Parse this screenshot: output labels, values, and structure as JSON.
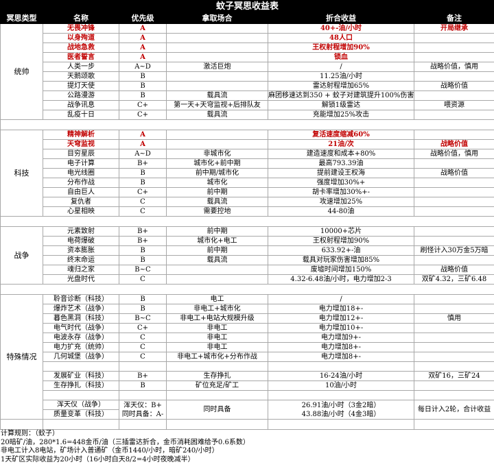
{
  "title": "蚊子冥思收益表",
  "headers": [
    "冥思类型",
    "名称",
    "优先级",
    "拿取场合",
    "折合收益",
    "备注"
  ],
  "accent_red": "#c00000",
  "sections": [
    {
      "type": "统帅",
      "rows": [
        {
          "name": "无畏冲锋",
          "priority": "A",
          "scene": "",
          "income": "40+-油/小时",
          "note": "开局继承",
          "red": true
        },
        {
          "name": "以身殉道",
          "priority": "A",
          "scene": "",
          "income": "48人口",
          "note": "",
          "red": true
        },
        {
          "name": "战地急救",
          "priority": "A",
          "scene": "",
          "income": "王权射程增加90%",
          "note": "",
          "red": true
        },
        {
          "name": "医者誓言",
          "priority": "A",
          "scene": "",
          "income": "锁血",
          "note": "",
          "red": true
        },
        {
          "name": "人类一步",
          "priority": "A~D",
          "scene": "激活巨炮",
          "income": "/",
          "note": "战略价值，慎用",
          "red": false
        },
        {
          "name": "天鹅颂歌",
          "priority": "B",
          "scene": "",
          "income": "11.25油/小时",
          "note": "",
          "red": false
        },
        {
          "name": "提灯天使",
          "priority": "B",
          "scene": "",
          "income": "雷达射程增加65%",
          "note": "战略价值",
          "red": false
        },
        {
          "name": "公路漫游",
          "priority": "B",
          "scene": "载具流",
          "income": "麻团移速达到350 + 蚊子对建筑提升100%伤害",
          "note": "",
          "red": false
        },
        {
          "name": "战争讯息",
          "priority": "C+",
          "scene": "第一天+天穹监视+后排队友",
          "income": "解锁1级雷达",
          "note": "喂资源",
          "red": false
        },
        {
          "name": "乱疫十日",
          "priority": "C+",
          "scene": "载具流",
          "income": "充能增加25%攻击",
          "note": "",
          "red": false
        }
      ]
    },
    {
      "type": "科技",
      "rows": [
        {
          "name": "精神解析",
          "priority": "A",
          "scene": "",
          "income": "复活速度缩减60%",
          "note": "",
          "red": true
        },
        {
          "name": "天穹监视",
          "priority": "A",
          "scene": "",
          "income": "21油/次",
          "note": "战略价值",
          "red": true
        },
        {
          "name": "目穷星辰",
          "priority": "A~D",
          "scene": "非城市化",
          "income": "建造速度和成本+80%",
          "note": "战略价值，慎用",
          "red": false
        },
        {
          "name": "电子计算",
          "priority": "B+",
          "scene": "城市化+前中期",
          "income": "最高793.39油",
          "note": "",
          "red": false
        },
        {
          "name": "电光线圈",
          "priority": "B",
          "scene": "前中期/城市化",
          "income": "提前建设王权海",
          "note": "战略价值",
          "red": false
        },
        {
          "name": "分布作战",
          "priority": "B",
          "scene": "城市化",
          "income": "强度增加30%+",
          "note": "",
          "red": false
        },
        {
          "name": "自由巨人",
          "priority": "C+",
          "scene": "前中期",
          "income": "胡卡率增加30%+-",
          "note": "",
          "red": false
        },
        {
          "name": "复仇者",
          "priority": "C",
          "scene": "载具流",
          "income": "攻速增加25%",
          "note": "",
          "red": false
        },
        {
          "name": "心星相映",
          "priority": "C",
          "scene": "需要控地",
          "income": "44-80油",
          "note": "",
          "red": false
        }
      ]
    },
    {
      "type": "战争",
      "rows": [
        {
          "name": "元素致射",
          "priority": "B+",
          "scene": "前中期",
          "income": "10000+芯片",
          "note": "",
          "red": false
        },
        {
          "name": "电荷爆破",
          "priority": "B+",
          "scene": "城市化+电工",
          "income": "王权射程增加90%",
          "note": "",
          "red": false
        },
        {
          "name": "资本膨胀",
          "priority": "B",
          "scene": "前中期",
          "income": "633.92+-油",
          "note": "刷怪计入30万金5万暗",
          "red": false
        },
        {
          "name": "终末命运",
          "priority": "B",
          "scene": "载具流",
          "income": "载具对玩家伤害增加85%",
          "note": "",
          "red": false
        },
        {
          "name": "魂归之家",
          "priority": "B~C",
          "scene": "",
          "income": "废墟时间增加150%",
          "note": "战略价值",
          "red": false
        },
        {
          "name": "光盘时代",
          "priority": "C",
          "scene": "",
          "income": "4.32-6.48油/小时，电力增加2-3",
          "note": "双矿4.32，三矿6.48",
          "red": false
        }
      ]
    }
  ],
  "special": {
    "type": "特殊情况",
    "rows_a": [
      {
        "name": "聆音诊断（科技）",
        "priority": "B",
        "scene": "电工",
        "income": "/",
        "note": ""
      },
      {
        "name": "爆炸艺术（战争）",
        "priority": "B",
        "scene": "非电工+城市化",
        "income": "电力增加18+-",
        "note": ""
      },
      {
        "name": "暮色黑洞（科技）",
        "priority": "B~C",
        "scene": "非电工+电站大规模升级",
        "income": "电力增加12+-",
        "note": "慎用"
      },
      {
        "name": "电气时代（战争）",
        "priority": "C+",
        "scene": "非电工",
        "income": "电力增加10+-",
        "note": ""
      },
      {
        "name": "电波永存（战争）",
        "priority": "C",
        "scene": "非电工",
        "income": "电力增加9+-",
        "note": ""
      },
      {
        "name": "电力扩充（统帅）",
        "priority": "C",
        "scene": "非电工",
        "income": "电力增加8+-",
        "note": ""
      },
      {
        "name": "几何城堡（战争）",
        "priority": "C",
        "scene": "非电工+城市化+分布作战",
        "income": "电力增加8+-",
        "note": ""
      }
    ],
    "rows_b": [
      {
        "name": "发展矿业（科技）",
        "priority": "B+",
        "scene": "生存挣扎",
        "income": "16-24油/小时",
        "note": "双矿16，三矿24"
      },
      {
        "name": "生存挣扎（科技）",
        "priority": "B",
        "scene": "矿位充足/矿工",
        "income": "10油/小时",
        "note": ""
      }
    ],
    "combo": {
      "names": [
        "浑天仪（战争）",
        "质量变革（科技）"
      ],
      "priority": [
        "浑天仪：B+",
        "同时具备：A-"
      ],
      "scene": "同时具备",
      "income": [
        "26.91油/小时（3金2暗）",
        "43.88油/小时（4金3暗）"
      ],
      "note": "每日计入2轮，合计收益"
    }
  },
  "notes": [
    "计算规则：（蚊子）",
    "20暗矿/油，280*1.6=448金币/油（三插雷达折合，金币消耗困难给予0.6系数）",
    "非电工计入8电站，矿场计入普通矿（金币1440/小时，暗矿240/小时）",
    "1天矿区实际收益为20小时（16小时白天8/2=4小时夜晚减半）"
  ]
}
